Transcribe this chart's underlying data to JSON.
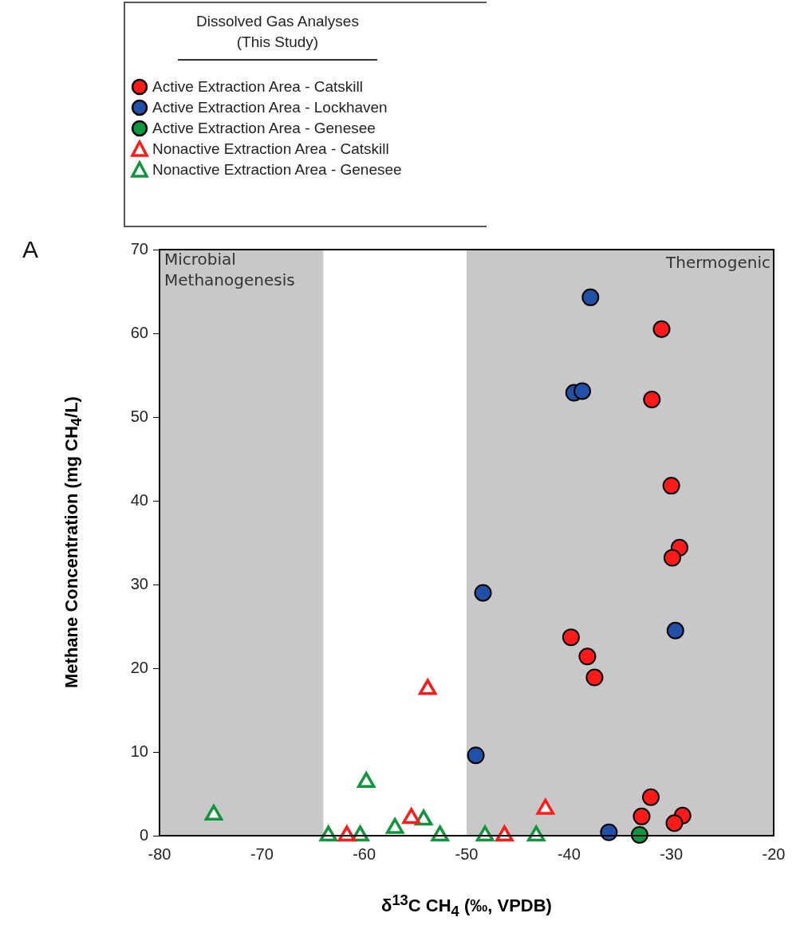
{
  "chart_data": {
    "type": "scatter",
    "legend_title": "Dissolved Gas Analyses (This Study)",
    "legend": "top left",
    "xlabel": "δ$^{13}$C CH$_{4}$ (‰, VPDB)",
    "ylabel": "Methane Concentration (mg CH$_{4}$/L)",
    "annotations": [
      "A"
    ],
    "xlim": [
      -80,
      -20
    ],
    "xticks": [
      -80,
      -70,
      -60,
      -50,
      -40,
      -30,
      -20
    ],
    "ylim": [
      0,
      70
    ],
    "yticks": [
      0,
      10,
      20,
      30,
      40,
      50,
      60,
      70
    ],
    "grid": false,
    "bands": [
      {
        "axis": "x",
        "from": -80,
        "to": -64,
        "label": "Microbial Methanogenesis",
        "color": "#c8c8c8"
      },
      {
        "axis": "x",
        "from": -50,
        "to": -20,
        "label": "Thermogenic",
        "color": "#c8c8c8"
      }
    ],
    "series": [
      {
        "name": "Active Extraction Area - Catskill",
        "color": "#ff1a1a",
        "marker": "circle",
        "x": [
          -30.95,
          -31.9,
          -30.0,
          -29.2,
          -29.9,
          -39.8,
          -38.2,
          -37.5,
          -32.0,
          -32.9,
          -28.9,
          -29.7
        ],
        "values": [
          60.5,
          52.1,
          41.8,
          34.4,
          33.2,
          23.7,
          21.4,
          18.9,
          4.6,
          2.3,
          2.4,
          1.5
        ]
      },
      {
        "name": "Active Extraction Area - Lockhaven",
        "color": "#2050a8",
        "marker": "circle",
        "x": [
          -37.9,
          -39.5,
          -38.7,
          -48.4,
          -29.6,
          -49.1,
          -36.1
        ],
        "values": [
          64.3,
          52.9,
          53.1,
          29.0,
          24.5,
          9.6,
          0.4
        ]
      },
      {
        "name": "Active Extraction Area - Genesee",
        "color": "#10963c",
        "marker": "circle",
        "x": [
          -33.1
        ],
        "values": [
          0.1
        ]
      },
      {
        "name": "Nonactive Extraction Area - Catskill",
        "color": "#ff1a1a",
        "marker": "triangle",
        "x": [
          -53.8,
          -42.3,
          -55.4,
          -61.7,
          -46.3
        ],
        "values": [
          17.5,
          3.2,
          2.1,
          0,
          0
        ]
      },
      {
        "name": "Nonactive Extraction Area - Genesee",
        "color": "#10963c",
        "marker": "triangle",
        "x": [
          -59.8,
          -74.7,
          -54.2,
          -57.0,
          -63.5,
          -60.4,
          -52.6,
          -48.2,
          -43.2
        ],
        "values": [
          6.4,
          2.5,
          1.9,
          0.9,
          0,
          0,
          0,
          0,
          0
        ]
      }
    ]
  }
}
